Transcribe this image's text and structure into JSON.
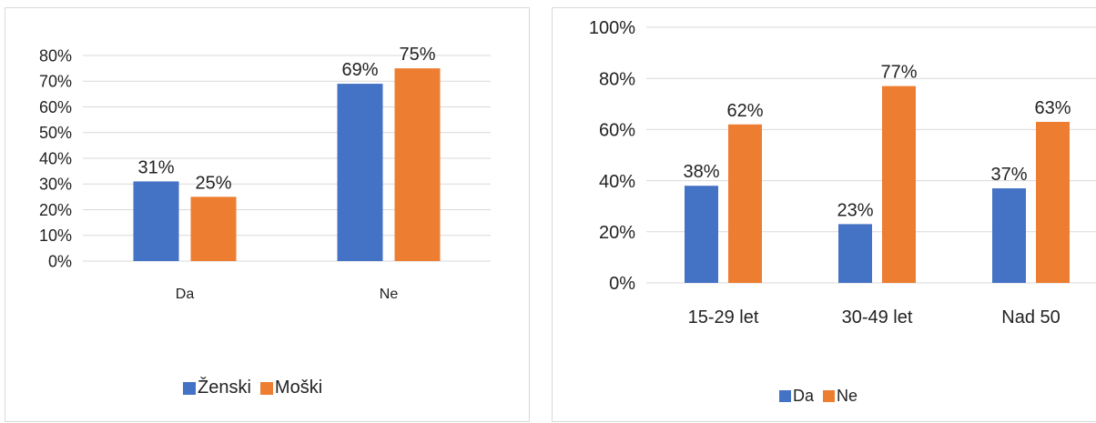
{
  "chart_data": [
    {
      "type": "bar",
      "title": "",
      "xlabel": "",
      "ylabel": "",
      "categories": [
        "Da",
        "Ne"
      ],
      "series": [
        {
          "name": "Ženski",
          "values": [
            31,
            69
          ],
          "labels": [
            "31%",
            "69%"
          ],
          "color": "#4472C4"
        },
        {
          "name": "Moški",
          "values": [
            25,
            75
          ],
          "labels": [
            "25%",
            "75%"
          ],
          "color": "#ED7D31"
        }
      ],
      "ylim": [
        0,
        80
      ],
      "yticks": [
        0,
        10,
        20,
        30,
        40,
        50,
        60,
        70,
        80
      ],
      "ytick_labels": [
        "0%",
        "10%",
        "20%",
        "30%",
        "40%",
        "50%",
        "60%",
        "70%",
        "80%"
      ],
      "grid": true,
      "legend": "bottom"
    },
    {
      "type": "bar",
      "title": "",
      "xlabel": "",
      "ylabel": "",
      "categories": [
        "15-29 let",
        "30-49 let",
        "Nad 50"
      ],
      "series": [
        {
          "name": "Da",
          "values": [
            38,
            23,
            37
          ],
          "labels": [
            "38%",
            "23%",
            "37%"
          ],
          "color": "#4472C4"
        },
        {
          "name": "Ne",
          "values": [
            62,
            77,
            63
          ],
          "labels": [
            "62%",
            "77%",
            "63%"
          ],
          "color": "#ED7D31"
        }
      ],
      "ylim": [
        0,
        100
      ],
      "yticks": [
        0,
        20,
        40,
        60,
        80,
        100
      ],
      "ytick_labels": [
        "0%",
        "20%",
        "40%",
        "60%",
        "80%",
        "100%"
      ],
      "grid": true,
      "legend": "bottom"
    }
  ]
}
